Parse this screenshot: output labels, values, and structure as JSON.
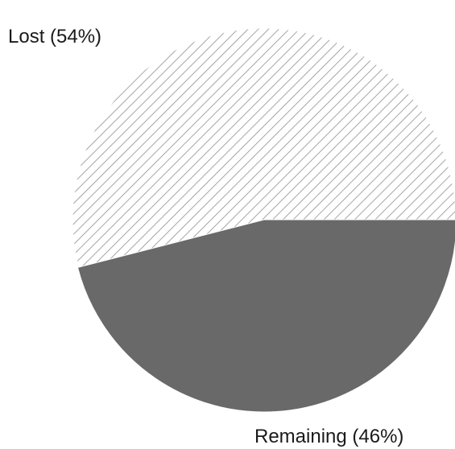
{
  "chart_data": {
    "type": "pie",
    "title": "",
    "slices": [
      {
        "label": "Lost",
        "value": 54,
        "display": "Lost  (54%)",
        "fill": "hatch",
        "color": "#8f8f8f"
      },
      {
        "label": "Remaining",
        "value": 46,
        "display": "Remaining (46%)",
        "fill": "solid",
        "color": "#696969"
      }
    ],
    "exploded": "Remaining"
  }
}
